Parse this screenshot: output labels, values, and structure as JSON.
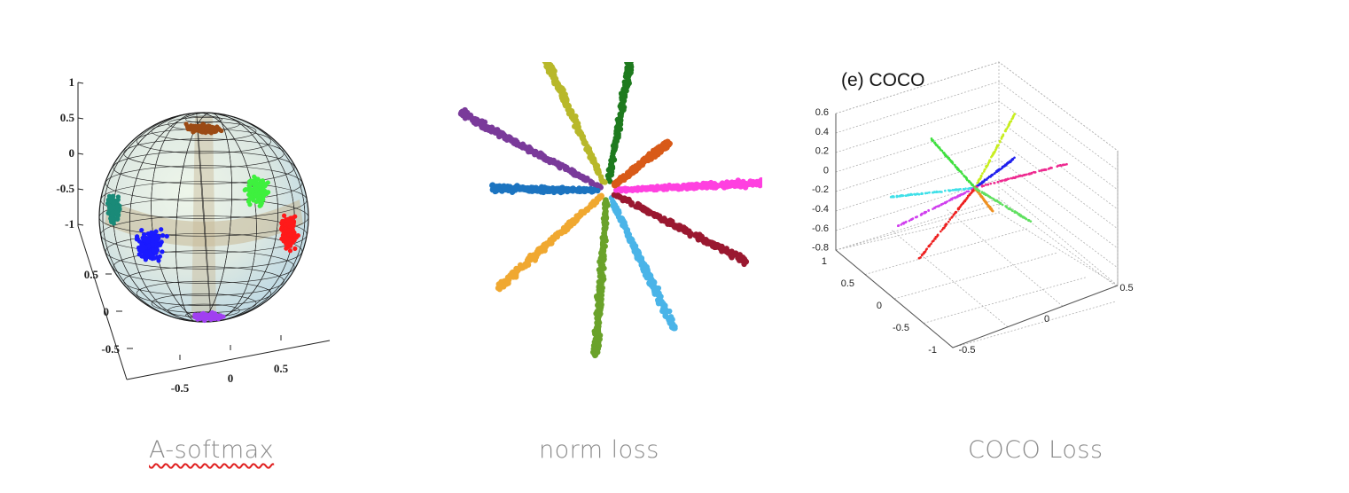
{
  "captions": {
    "asoftmax": "A-softmax",
    "norm": "norm loss",
    "coco": "COCO Loss"
  },
  "chart_data": [
    {
      "type": "scatter",
      "title": "",
      "projection": "3d-sphere",
      "z_ticks": [
        "1",
        "0.5",
        "0",
        "-0.5",
        "-1"
      ],
      "y_ticks": [
        "0.5",
        "0",
        "-0.5"
      ],
      "x_ticks": [
        "-0.5",
        "0",
        "0.5"
      ],
      "clusters": [
        {
          "color": "#9b4a14",
          "position": "top"
        },
        {
          "color": "#3ef03e",
          "position": "upper-right"
        },
        {
          "color": "#1a8a78",
          "position": "left"
        },
        {
          "color": "#1a1aff",
          "position": "lower-left"
        },
        {
          "color": "#ff1a1a",
          "position": "right"
        },
        {
          "color": "#a040f0",
          "position": "bottom"
        }
      ]
    },
    {
      "type": "scatter",
      "title": "",
      "rays": [
        {
          "color": "#1e7a1e",
          "angle_deg": 80,
          "length": 1.0
        },
        {
          "color": "#b8b82a",
          "angle_deg": 115,
          "length": 1.0
        },
        {
          "color": "#7a3a9a",
          "angle_deg": 152,
          "length": 1.0
        },
        {
          "color": "#1c74c0",
          "angle_deg": 179,
          "length": 0.68
        },
        {
          "color": "#f0a830",
          "angle_deg": 222,
          "length": 0.88
        },
        {
          "color": "#6aa22a",
          "angle_deg": 266,
          "length": 1.0
        },
        {
          "color": "#4ab4e8",
          "angle_deg": 296,
          "length": 0.92
        },
        {
          "color": "#9a1830",
          "angle_deg": 333,
          "length": 0.94
        },
        {
          "color": "#ff40e0",
          "angle_deg": 3,
          "length": 1.0
        },
        {
          "color": "#d85a18",
          "angle_deg": 38,
          "length": 0.45
        }
      ]
    },
    {
      "type": "scatter",
      "title": "(e) COCO",
      "projection": "3d",
      "z_ticks": [
        "0.6",
        "0.4",
        "0.2",
        "0",
        "-0.2",
        "-0.4",
        "-0.6",
        "-0.8"
      ],
      "y_ticks": [
        "1",
        "0.5",
        "0",
        "-0.5",
        "-1"
      ],
      "x_ticks": [
        "-0.5",
        "0",
        "0.5"
      ],
      "rays": [
        {
          "color": "#c8ee20"
        },
        {
          "color": "#2020ee"
        },
        {
          "color": "#ee2a90"
        },
        {
          "color": "#40e0e8"
        },
        {
          "color": "#d040ee"
        },
        {
          "color": "#ee2020"
        },
        {
          "color": "#40e040"
        },
        {
          "color": "#ee9020"
        },
        {
          "color": "#60e060"
        }
      ]
    }
  ]
}
